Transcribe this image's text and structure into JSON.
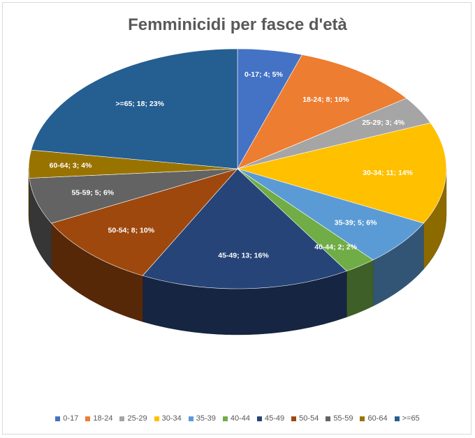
{
  "chart_data": {
    "type": "pie",
    "title": "Femminicidi per fasce d'età",
    "legend_position": "bottom",
    "style": "3d-tilted",
    "slices": [
      {
        "category": "0-17",
        "value": 4,
        "percent": "5%",
        "label": "0-17; 4; 5%",
        "color": "#4472C4"
      },
      {
        "category": "18-24",
        "value": 8,
        "percent": "10%",
        "label": "18-24; 8; 10%",
        "color": "#ED7D31"
      },
      {
        "category": "25-29",
        "value": 3,
        "percent": "4%",
        "label": "25-29; 3; 4%",
        "color": "#A5A5A5"
      },
      {
        "category": "30-34",
        "value": 11,
        "percent": "14%",
        "label": "30-34; 11; 14%",
        "color": "#FFC000"
      },
      {
        "category": "35-39",
        "value": 5,
        "percent": "6%",
        "label": "35-39; 5; 6%",
        "color": "#5B9BD5"
      },
      {
        "category": "40-44",
        "value": 2,
        "percent": "2%",
        "label": "40-44; 2; 2%",
        "color": "#70AD47"
      },
      {
        "category": "45-49",
        "value": 13,
        "percent": "16%",
        "label": "45-49; 13; 16%",
        "color": "#264478"
      },
      {
        "category": "50-54",
        "value": 8,
        "percent": "10%",
        "label": "50-54; 8; 10%",
        "color": "#9E480E"
      },
      {
        "category": "55-59",
        "value": 5,
        "percent": "6%",
        "label": "55-59; 5; 6%",
        "color": "#636363"
      },
      {
        "category": "60-64",
        "value": 3,
        "percent": "4%",
        "label": "60-64; 3; 4%",
        "color": "#997300"
      },
      {
        "category": ">=65",
        "value": 18,
        "percent": "23%",
        "label": ">=65; 18; 23%",
        "color": "#255E91"
      }
    ]
  }
}
